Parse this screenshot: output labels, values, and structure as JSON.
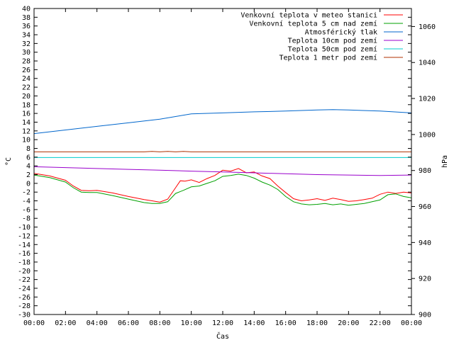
{
  "chart_data": {
    "type": "line",
    "xlabel": "Čas",
    "ylabel_left": "°C",
    "ylabel_right": "hPa",
    "ylim_left": [
      -30,
      40
    ],
    "ylim_right": [
      900,
      1070
    ],
    "xlim_hours": [
      0,
      24
    ],
    "x_ticks": [
      "00:00",
      "02:00",
      "04:00",
      "06:00",
      "08:00",
      "10:00",
      "12:00",
      "14:00",
      "16:00",
      "18:00",
      "20:00",
      "22:00",
      "00:00"
    ],
    "y_ticks_left": [
      40,
      38,
      36,
      34,
      32,
      30,
      28,
      26,
      24,
      22,
      20,
      18,
      16,
      14,
      12,
      10,
      8,
      6,
      4,
      2,
      0,
      -2,
      -4,
      -6,
      -8,
      -10,
      -12,
      -14,
      -16,
      -18,
      -20,
      -22,
      -24,
      -26,
      -28,
      -30
    ],
    "y_ticks_right": [
      1060,
      1040,
      1020,
      1000,
      980,
      960,
      940,
      920,
      900
    ],
    "grid": false,
    "legend_position": "top-right",
    "series": [
      {
        "name": "Venkovní teplota v meteo stanici",
        "color": "#ff0000",
        "axis": "left",
        "x": [
          0,
          1,
          2,
          2.5,
          3,
          3.5,
          4,
          5,
          6,
          7,
          7.5,
          8,
          8.5,
          9,
          9.3,
          9.6,
          10,
          10.5,
          11,
          11.5,
          12,
          12.5,
          13,
          13.5,
          14,
          14.5,
          15,
          15.5,
          16,
          16.5,
          17,
          17.5,
          18,
          18.5,
          19,
          19.5,
          20,
          20.5,
          21,
          21.5,
          22,
          22.5,
          23,
          23.5,
          24
        ],
        "y": [
          2.3,
          1.7,
          0.7,
          -0.6,
          -1.6,
          -1.7,
          -1.6,
          -2.2,
          -3.0,
          -3.7,
          -4.0,
          -4.3,
          -3.6,
          -1.0,
          0.6,
          0.5,
          0.8,
          0.2,
          1.1,
          1.8,
          3.0,
          2.8,
          3.4,
          2.4,
          2.6,
          1.7,
          1.1,
          -0.6,
          -2.1,
          -3.5,
          -4.0,
          -3.8,
          -3.5,
          -3.9,
          -3.4,
          -3.7,
          -4.1,
          -4.0,
          -3.7,
          -3.4,
          -2.5,
          -2.0,
          -2.3,
          -2.0,
          -2.2
        ]
      },
      {
        "name": "Venkovní teplota 5 cm nad zemí",
        "color": "#00a000",
        "axis": "left",
        "x": [
          0,
          1,
          2,
          2.5,
          3,
          3.5,
          4,
          5,
          6,
          7,
          7.5,
          8,
          8.5,
          9,
          9.5,
          10,
          10.5,
          11,
          11.5,
          12,
          12.5,
          13,
          13.5,
          14,
          14.5,
          15,
          15.5,
          16,
          16.5,
          17,
          17.5,
          18,
          18.5,
          19,
          19.5,
          20,
          20.5,
          21,
          21.5,
          22,
          22.5,
          23,
          23.5,
          24
        ],
        "y": [
          1.9,
          1.3,
          0.3,
          -1.0,
          -2.0,
          -2.1,
          -2.1,
          -2.8,
          -3.6,
          -4.4,
          -4.6,
          -4.6,
          -4.2,
          -2.3,
          -1.6,
          -0.8,
          -0.6,
          0.0,
          0.6,
          1.6,
          1.8,
          2.1,
          1.8,
          1.2,
          0.3,
          -0.4,
          -1.4,
          -3.0,
          -4.2,
          -4.7,
          -4.9,
          -4.8,
          -4.6,
          -4.9,
          -4.7,
          -5.0,
          -4.8,
          -4.6,
          -4.2,
          -3.8,
          -2.6,
          -2.4,
          -3.0,
          -3.3
        ]
      },
      {
        "name": "Atmosférický tlak",
        "color": "#0066cc",
        "axis": "right",
        "x": [
          0,
          2,
          4,
          6,
          8,
          9,
          10,
          12,
          14,
          16,
          18,
          19,
          20,
          22,
          24
        ],
        "y": [
          1000.5,
          1002.5,
          1004.5,
          1006.5,
          1008.5,
          1010,
          1011.5,
          1012,
          1012.6,
          1013,
          1013.6,
          1013.8,
          1013.6,
          1013,
          1012
        ]
      },
      {
        "name": "Teplota 10cm pod zemí",
        "color": "#9900cc",
        "axis": "left",
        "x": [
          0,
          2,
          4,
          6,
          8,
          10,
          12,
          14,
          16,
          18,
          20,
          22,
          24
        ],
        "y": [
          3.8,
          3.6,
          3.4,
          3.2,
          3.0,
          2.8,
          2.6,
          2.4,
          2.2,
          2.0,
          1.9,
          1.8,
          1.9
        ]
      },
      {
        "name": "Teplota 50cm pod zemí",
        "color": "#00cccc",
        "axis": "left",
        "x": [
          0,
          24
        ],
        "y": [
          5.9,
          5.9
        ]
      },
      {
        "name": "Teplota 1 metr pod zemí",
        "color": "#b03000",
        "axis": "left",
        "x": [
          0,
          7,
          7.5,
          8,
          8.5,
          9,
          9.5,
          10,
          24
        ],
        "y": [
          7.2,
          7.2,
          7.3,
          7.2,
          7.3,
          7.2,
          7.3,
          7.2,
          7.2
        ]
      }
    ]
  }
}
